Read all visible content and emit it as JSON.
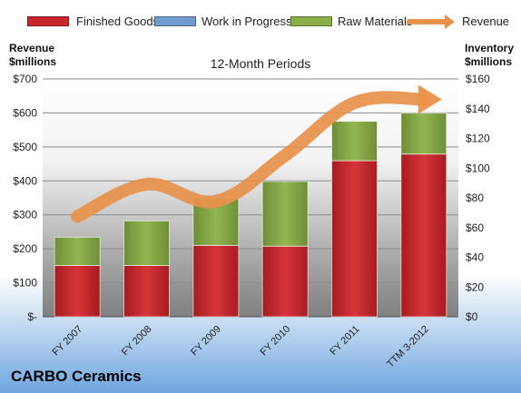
{
  "chart_data": {
    "type": "bar",
    "stacked": true,
    "title": "",
    "subtitle": "12-Month Periods",
    "company": "CARBO Ceramics",
    "categories": [
      "FY 2007",
      "FY 2008",
      "FY 2009",
      "FY 2010",
      "FY 2011",
      "TTM 3-2012"
    ],
    "left_axis": {
      "label_line1": "Revenue",
      "label_line2": "$millions",
      "ylim": [
        0,
        700
      ],
      "ticks": [
        0,
        100,
        200,
        300,
        400,
        500,
        600,
        700
      ],
      "tick_labels": [
        "$-",
        "$100",
        "$200",
        "$300",
        "$400",
        "$500",
        "$600",
        "$700"
      ]
    },
    "right_axis": {
      "label_line1": "Inventory",
      "label_line2": "$millions",
      "ylim": [
        0,
        160
      ],
      "ticks": [
        0,
        20,
        40,
        60,
        80,
        100,
        120,
        140,
        160
      ],
      "tick_labels": [
        "$0",
        "$20",
        "$40",
        "$60",
        "$80",
        "$100",
        "$120",
        "$140",
        "$160"
      ]
    },
    "series": [
      {
        "name": "Finished Goods",
        "type": "bar",
        "axis": "right",
        "color": "#c9262c",
        "values": [
          34.5,
          34.5,
          48,
          47.5,
          105,
          109.5
        ]
      },
      {
        "name": "Work in Progress",
        "type": "bar",
        "axis": "right",
        "color": "#6f9bd1",
        "values": [
          0,
          0,
          0,
          0,
          0,
          0
        ]
      },
      {
        "name": "Raw Materials",
        "type": "bar",
        "axis": "right",
        "color": "#8aae4a",
        "values": [
          19,
          30,
          32,
          43.5,
          26.5,
          27.5
        ]
      },
      {
        "name": "Revenue",
        "type": "line",
        "axis": "left",
        "color": "#e8914a",
        "values": [
          295,
          390,
          340,
          475,
          630,
          640
        ]
      }
    ],
    "grid": true,
    "legend_position": "top"
  }
}
